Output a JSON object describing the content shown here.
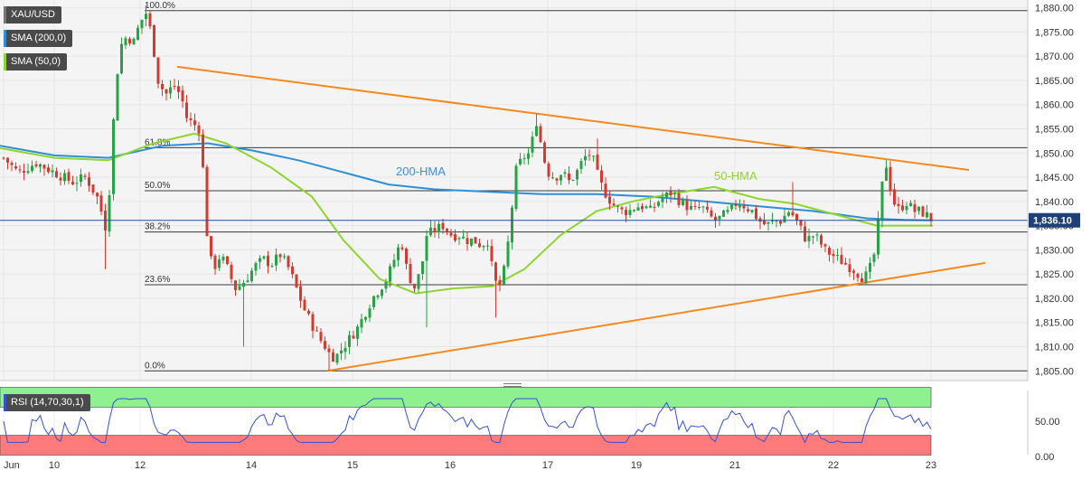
{
  "symbol": "XAU/USD",
  "indicators": [
    {
      "label": "SMA (200,0)",
      "color": "#2e8fd6"
    },
    {
      "label": "SMA (50,0)",
      "color": "#8ed62e"
    }
  ],
  "last_price_label": "1,836.10",
  "rsi": {
    "label": "RSI (14,70,30,1)",
    "ticks": [
      "50.00",
      "0.00"
    ],
    "upper_zone_color": "#8ff08f",
    "lower_zone_color": "#ff7b7b"
  },
  "chart_data": {
    "type": "candlestick",
    "x_tick_labels": [
      "Jun",
      "10",
      "12",
      "14",
      "15",
      "16",
      "17",
      "19",
      "21",
      "22",
      "23"
    ],
    "y_ticks": [
      1805,
      1810,
      1815,
      1820,
      1825,
      1830,
      1835,
      1840,
      1845,
      1850,
      1855,
      1860,
      1865,
      1870,
      1875,
      1880
    ],
    "y_tick_labels": [
      "1,805.00",
      "1,810.00",
      "1,815.00",
      "1,820.00",
      "1,825.00",
      "1,830.00",
      "1,835.00",
      "1,840.00",
      "1,845.00",
      "1,850.00",
      "1,855.00",
      "1,860.00",
      "1,865.00",
      "1,870.00",
      "1,875.00",
      "1,880.00"
    ],
    "ylim": [
      1803,
      1881.6
    ],
    "last_price": 1836.1,
    "fibonacci": [
      {
        "label": "100.0%",
        "price": 1879.4
      },
      {
        "label": "61.8%",
        "price": 1851.1
      },
      {
        "label": "50.0%",
        "price": 1842.2
      },
      {
        "label": "38.2%",
        "price": 1833.7
      },
      {
        "label": "23.6%",
        "price": 1822.8
      },
      {
        "label": "0.0%",
        "price": 1805.0
      }
    ],
    "annotations": [
      {
        "text": "200-HMA",
        "color": "#3a8fdc"
      },
      {
        "text": "50-HMA",
        "color": "#8ed62e"
      }
    ],
    "colors": {
      "up": "#26a344",
      "down": "#d63a2e",
      "trendline": "#f28a1e",
      "hma200": "#2e8fd6",
      "hma50": "#8ed62e",
      "rsi": "#3450d8",
      "price_line": "#1f4e9c"
    },
    "rsi_ticks": [
      50,
      0
    ],
    "rsi_range": [
      0,
      100
    ]
  }
}
